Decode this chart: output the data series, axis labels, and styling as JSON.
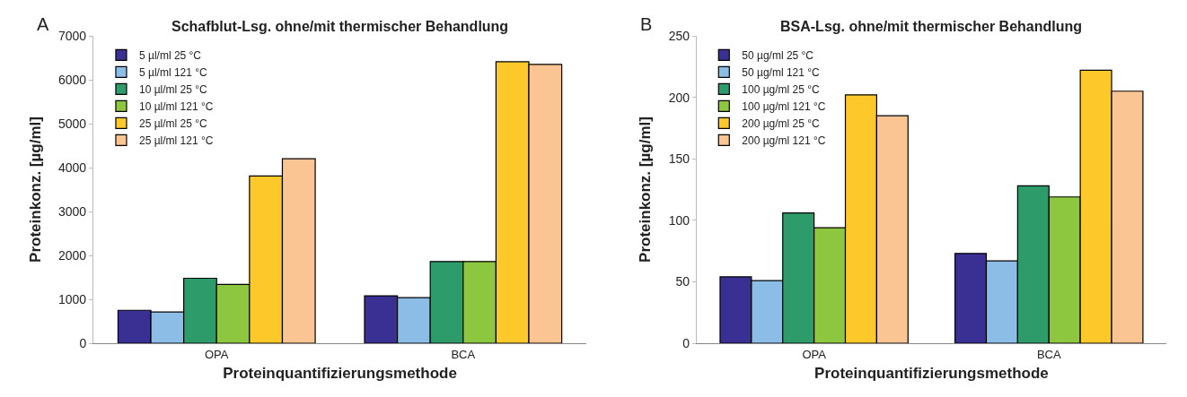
{
  "chart_data": [
    {
      "type": "bar",
      "title": "Schafblut-Lsg. ohne/mit thermischer Behandlung",
      "xlabel": "Proteinquantifizierungsmethode",
      "ylabel": "Proteinkonz. [µg/ml]",
      "annotations": [
        "A"
      ],
      "categories": [
        "OPA",
        "BCA"
      ],
      "ylim": [
        0,
        7000
      ],
      "yticks": [
        0,
        1000,
        2000,
        3000,
        4000,
        5000,
        6000,
        7000
      ],
      "legend": "top left",
      "series": [
        {
          "name": "5 µl/ml 25 °C",
          "color": "#3a3093",
          "values": [
            750,
            1080
          ]
        },
        {
          "name": "5 µl/ml 121 °C",
          "color": "#8cbde6",
          "values": [
            710,
            1040
          ]
        },
        {
          "name": "10 µl/ml 25 °C",
          "color": "#2e9c6a",
          "values": [
            1480,
            1860
          ]
        },
        {
          "name": "10 µl/ml 121 °C",
          "color": "#8dc63f",
          "values": [
            1340,
            1860
          ]
        },
        {
          "name": "25 µl/ml 25 °C",
          "color": "#fdc82a",
          "values": [
            3810,
            6410
          ]
        },
        {
          "name": "25 µl/ml 121 °C",
          "color": "#fbc493",
          "values": [
            4200,
            6350
          ]
        }
      ]
    },
    {
      "type": "bar",
      "title": "BSA-Lsg. ohne/mit thermischer Behandlung",
      "xlabel": "Proteinquantifizierungsmethode",
      "ylabel": "Proteinkonz. [µg/ml]",
      "annotations": [
        "B"
      ],
      "categories": [
        "OPA",
        "BCA"
      ],
      "ylim": [
        0,
        250
      ],
      "yticks": [
        0,
        50,
        100,
        150,
        200,
        250
      ],
      "legend": "top left",
      "series": [
        {
          "name": "50 µg/ml 25 °C",
          "color": "#3a3093",
          "values": [
            54,
            73
          ]
        },
        {
          "name": "50 µg/ml 121 °C",
          "color": "#8cbde6",
          "values": [
            51,
            67
          ]
        },
        {
          "name": "100 µg/ml 25 °C",
          "color": "#2e9c6a",
          "values": [
            106,
            128
          ]
        },
        {
          "name": "100 µg/ml 121 °C",
          "color": "#8dc63f",
          "values": [
            94,
            119
          ]
        },
        {
          "name": "200 µg/ml 25 °C",
          "color": "#fdc82a",
          "values": [
            202,
            222
          ]
        },
        {
          "name": "200 µg/ml 121 °C",
          "color": "#fbc493",
          "values": [
            185,
            205
          ]
        }
      ]
    }
  ]
}
